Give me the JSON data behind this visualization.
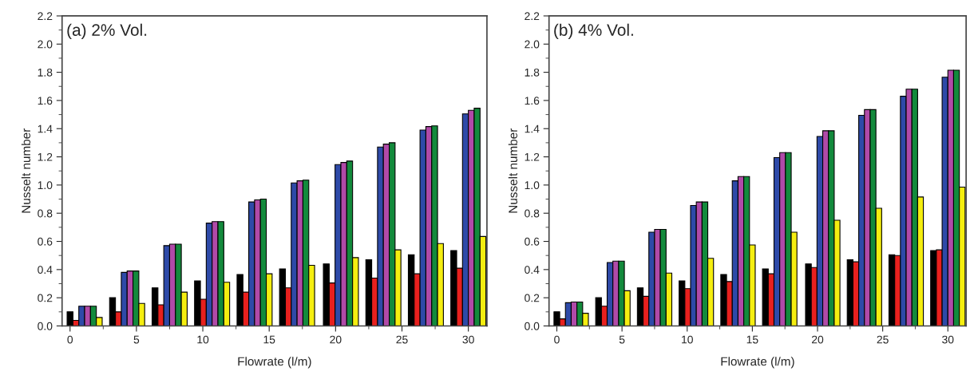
{
  "chart_data": [
    {
      "type": "bar",
      "title": "(a) 2% Vol.",
      "xlabel": "Flowrate (l/m)",
      "ylabel": "Nusselt number",
      "xlim": [
        -0.6,
        31.4
      ],
      "xticks": [
        0,
        5,
        10,
        15,
        20,
        25,
        30
      ],
      "ylim": [
        0,
        2.2
      ],
      "yticks": [
        {
          "value": 0,
          "label": "0.0"
        },
        0.2,
        0.4,
        0.6,
        0.8,
        {
          "value": 1,
          "label": "1.0"
        },
        1.2,
        1.4,
        1.6,
        1.8,
        {
          "value": 2,
          "label": "2.0"
        },
        2.2
      ],
      "grid": false,
      "legend": false,
      "series": [
        {
          "color": "#000000",
          "x": [
            0,
            3.2,
            6.4,
            9.6,
            12.8,
            16.0,
            19.3,
            22.5,
            25.7,
            28.9
          ],
          "values": [
            0.1,
            0.2,
            0.27,
            0.32,
            0.365,
            0.405,
            0.44,
            0.47,
            0.505,
            0.535
          ]
        },
        {
          "color": "#e8201e",
          "x": [
            0.44,
            3.64,
            6.84,
            10.04,
            13.24,
            16.44,
            19.74,
            22.94,
            26.14,
            29.34
          ],
          "values": [
            0.04,
            0.1,
            0.15,
            0.19,
            0.24,
            0.27,
            0.305,
            0.34,
            0.37,
            0.41
          ]
        },
        {
          "color": "#2e4aa8",
          "x": [
            0.88,
            4.08,
            7.28,
            10.48,
            13.68,
            16.88,
            20.18,
            23.38,
            26.58,
            29.78
          ],
          "values": [
            0.14,
            0.38,
            0.57,
            0.73,
            0.88,
            1.015,
            1.145,
            1.27,
            1.39,
            1.505
          ]
        },
        {
          "color": "#b04aa8",
          "x": [
            1.32,
            4.52,
            7.72,
            10.92,
            14.12,
            17.32,
            20.62,
            23.82,
            27.02,
            30.22
          ],
          "values": [
            0.14,
            0.39,
            0.58,
            0.74,
            0.895,
            1.03,
            1.16,
            1.29,
            1.415,
            1.53
          ]
        },
        {
          "color": "#138a3c",
          "x": [
            1.76,
            4.96,
            8.16,
            11.36,
            14.56,
            17.76,
            21.06,
            24.26,
            27.46,
            30.66
          ],
          "values": [
            0.14,
            0.39,
            0.58,
            0.74,
            0.9,
            1.035,
            1.17,
            1.3,
            1.42,
            1.545
          ]
        },
        {
          "color": "#f5ee10",
          "x": [
            2.2,
            5.4,
            8.6,
            11.8,
            15.0,
            18.2,
            21.5,
            24.7,
            27.9,
            31.1
          ],
          "values": [
            0.06,
            0.16,
            0.24,
            0.31,
            0.37,
            0.43,
            0.485,
            0.54,
            0.585,
            0.635
          ]
        }
      ]
    },
    {
      "type": "bar",
      "title": "(b) 4% Vol.",
      "xlabel": "Flowrate (l/m)",
      "ylabel": "Nusselt number",
      "xlim": [
        -0.6,
        31.4
      ],
      "xticks": [
        0,
        5,
        10,
        15,
        20,
        25,
        30
      ],
      "ylim": [
        0,
        2.2
      ],
      "yticks": [
        {
          "value": 0,
          "label": "0.0"
        },
        0.2,
        0.4,
        0.6,
        0.8,
        {
          "value": 1,
          "label": "1.0"
        },
        1.2,
        1.4,
        1.6,
        1.8,
        {
          "value": 2,
          "label": "2.0"
        },
        2.2
      ],
      "grid": false,
      "legend": false,
      "series": [
        {
          "color": "#000000",
          "x": [
            0,
            3.2,
            6.4,
            9.6,
            12.8,
            16.0,
            19.3,
            22.5,
            25.7,
            28.9
          ],
          "values": [
            0.1,
            0.2,
            0.27,
            0.32,
            0.365,
            0.405,
            0.44,
            0.47,
            0.505,
            0.535
          ]
        },
        {
          "color": "#e8201e",
          "x": [
            0.44,
            3.64,
            6.84,
            10.04,
            13.24,
            16.44,
            19.74,
            22.94,
            26.14,
            29.34
          ],
          "values": [
            0.05,
            0.14,
            0.21,
            0.265,
            0.315,
            0.37,
            0.415,
            0.455,
            0.5,
            0.54
          ]
        },
        {
          "color": "#2e4aa8",
          "x": [
            0.88,
            4.08,
            7.28,
            10.48,
            13.68,
            16.88,
            20.18,
            23.38,
            26.58,
            29.78
          ],
          "values": [
            0.165,
            0.45,
            0.665,
            0.855,
            1.03,
            1.195,
            1.345,
            1.495,
            1.63,
            1.765
          ]
        },
        {
          "color": "#b04aa8",
          "x": [
            1.32,
            4.52,
            7.72,
            10.92,
            14.12,
            17.32,
            20.62,
            23.82,
            27.02,
            30.22
          ],
          "values": [
            0.17,
            0.46,
            0.685,
            0.88,
            1.06,
            1.23,
            1.385,
            1.535,
            1.68,
            1.815
          ]
        },
        {
          "color": "#138a3c",
          "x": [
            1.76,
            4.96,
            8.16,
            11.36,
            14.56,
            17.76,
            21.06,
            24.26,
            27.46,
            30.66
          ],
          "values": [
            0.17,
            0.46,
            0.685,
            0.88,
            1.06,
            1.23,
            1.385,
            1.535,
            1.68,
            1.815
          ]
        },
        {
          "color": "#f5ee10",
          "x": [
            2.2,
            5.4,
            8.6,
            11.8,
            15.0,
            18.2,
            21.5,
            24.7,
            27.9,
            31.1
          ],
          "values": [
            0.09,
            0.25,
            0.375,
            0.48,
            0.575,
            0.665,
            0.75,
            0.835,
            0.915,
            0.985
          ]
        }
      ]
    }
  ]
}
